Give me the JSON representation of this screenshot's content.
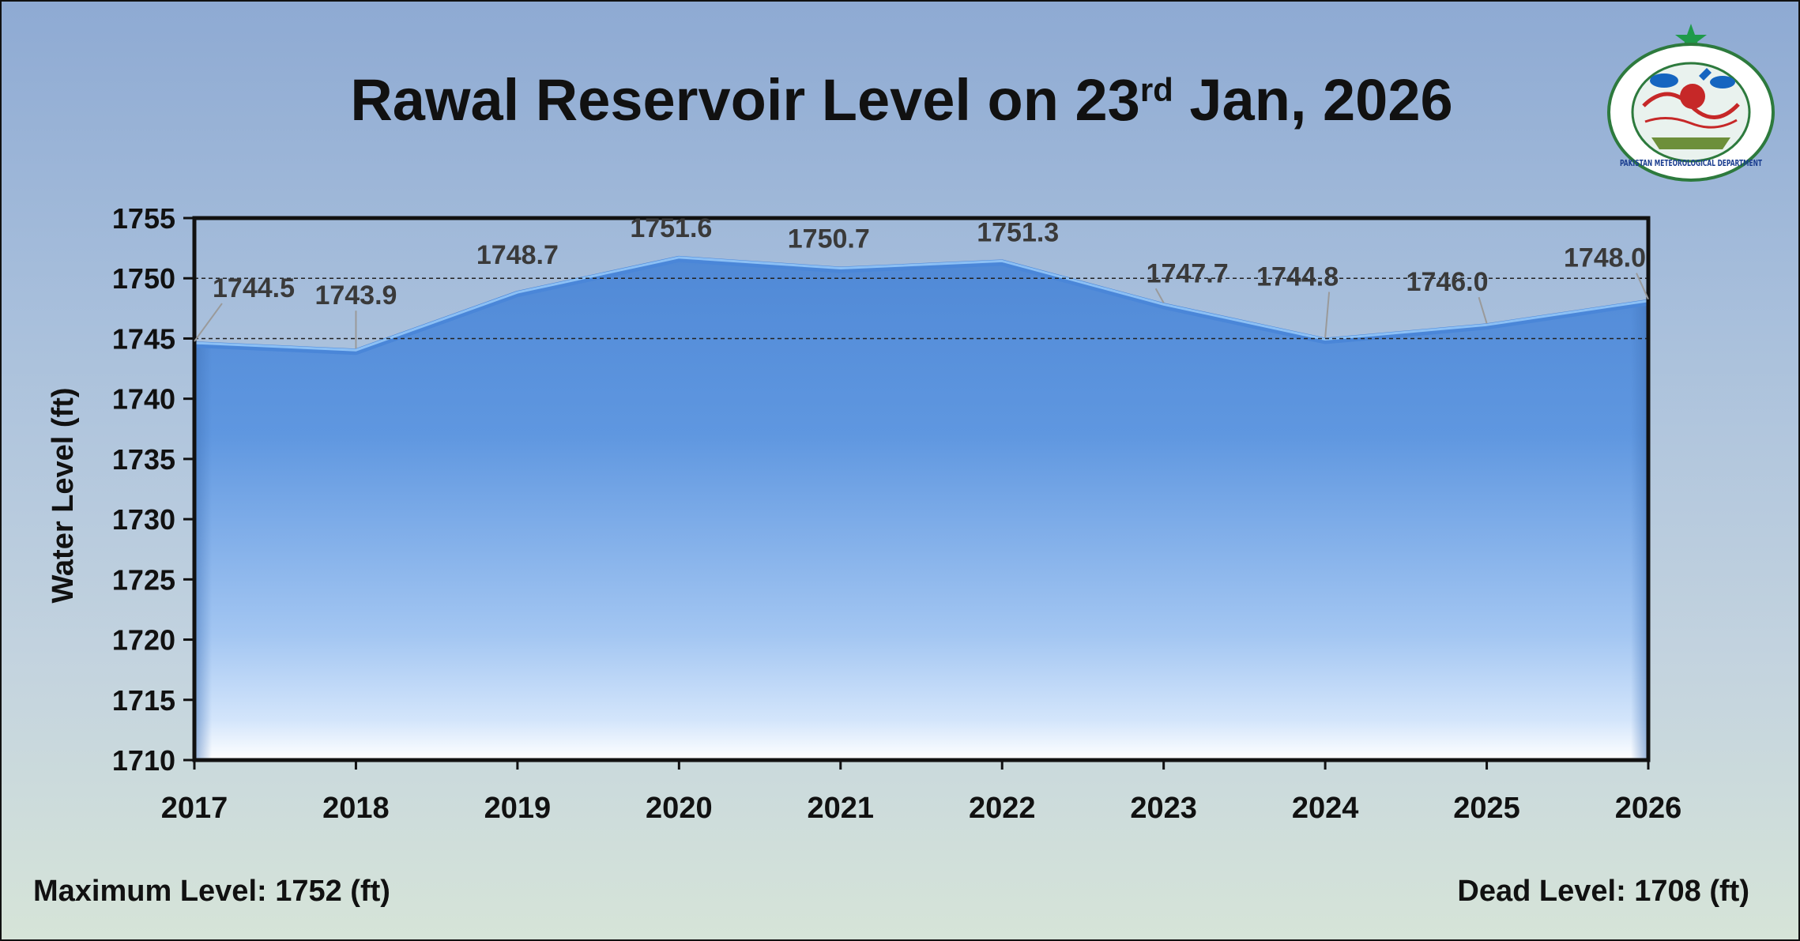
{
  "title": {
    "main": "Rawal Reservoir Level on 23",
    "superscript": "rd",
    "tail": " Jan, 2026"
  },
  "footer": {
    "max_level": "Maximum Level: 1752 (ft)",
    "dead_level": "Dead Level: 1708 (ft)"
  },
  "logo": {
    "text": "PAKISTAN METEOROLOGICAL DEPARTMENT"
  },
  "colors": {
    "area_top": "#5b94dd",
    "area_bottom": "#e8f2ff",
    "line": "#6aa8ee",
    "label": "#3a3a3a"
  },
  "chart_data": {
    "type": "area",
    "title": "Rawal Reservoir Level on 23rd Jan, 2026",
    "xlabel": "",
    "ylabel": "Water Level (ft)",
    "ylim": [
      1710,
      1755
    ],
    "yticks": [
      "1710",
      "1715",
      "1720",
      "1725",
      "1730",
      "1735",
      "1740",
      "1745",
      "1750",
      "1755"
    ],
    "categories": [
      "2017",
      "2018",
      "2019",
      "2020",
      "2021",
      "2022",
      "2023",
      "2024",
      "2025",
      "2026"
    ],
    "values": [
      1744.5,
      1743.9,
      1748.7,
      1751.6,
      1750.7,
      1751.3,
      1747.7,
      1744.8,
      1746.0,
      1748.0
    ],
    "data_labels": [
      "1744.5",
      "1743.9",
      "1748.7",
      "1751.6",
      "1750.7",
      "1751.3",
      "1747.7",
      "1744.8",
      "1746.0",
      "1748.0"
    ],
    "reference_lines": [
      1745,
      1750
    ],
    "grid": false,
    "legend": "none"
  }
}
